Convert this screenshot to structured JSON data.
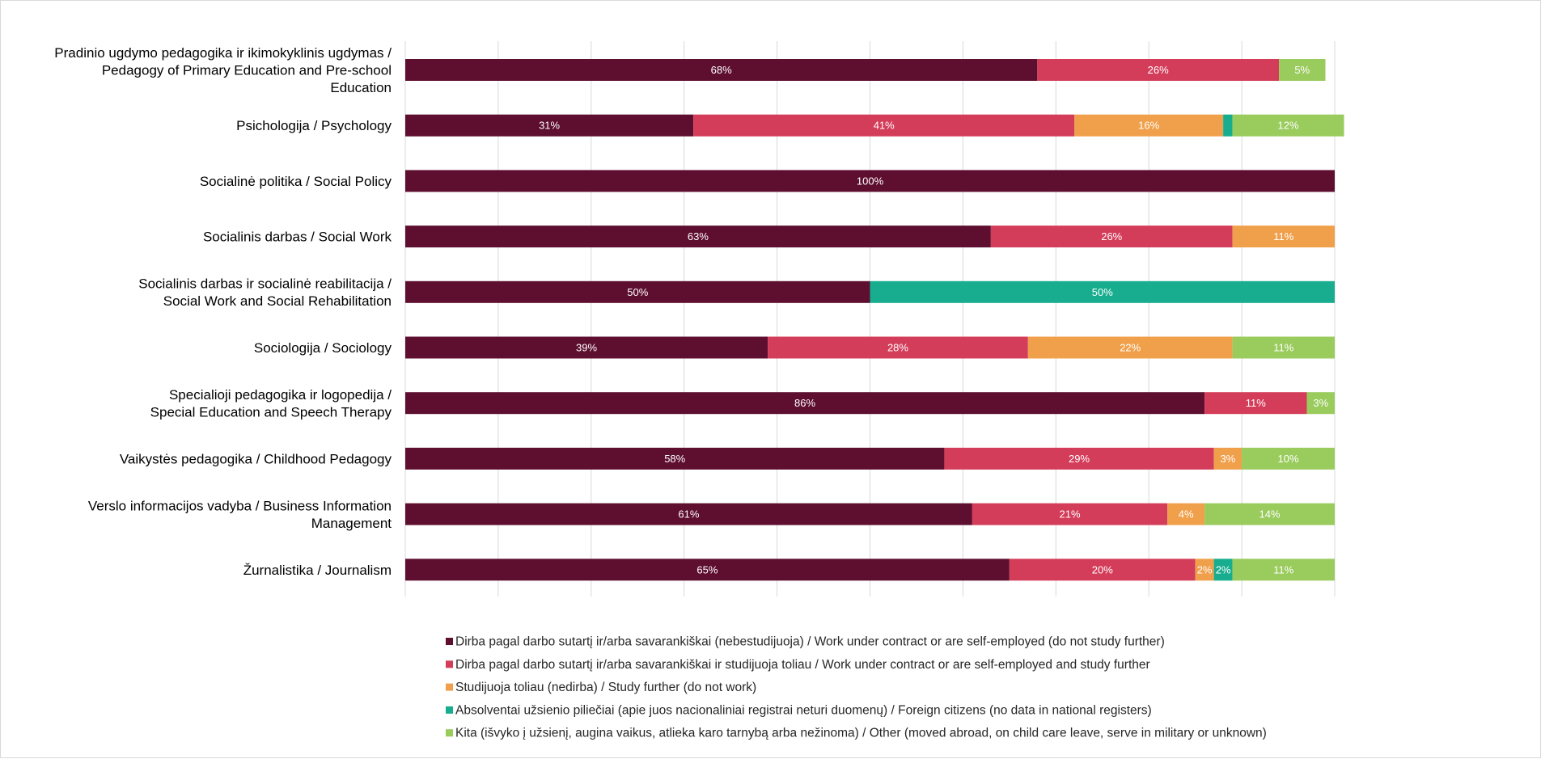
{
  "chart_data": {
    "type": "bar",
    "orientation": "horizontal",
    "stacked": true,
    "xlim": [
      0,
      100
    ],
    "grid": true,
    "legend_position": "bottom",
    "categories": [
      [
        "Pradinio ugdymo pedagogika ir ikimokyklinis ugdymas /",
        "Pedagogy of Primary Education and Pre-school",
        "Education"
      ],
      [
        "Psichologija / Psychology"
      ],
      [
        "Socialinė politika / Social Policy"
      ],
      [
        "Socialinis darbas / Social Work"
      ],
      [
        "Socialinis darbas ir socialinė reabilitacija /",
        "Social Work and Social Rehabilitation"
      ],
      [
        "Sociologija / Sociology"
      ],
      [
        "Specialioji pedagogika ir logopedija /",
        "Special Education and Speech Therapy"
      ],
      [
        "Vaikystės pedagogika / Childhood Pedagogy"
      ],
      [
        "Verslo informacijos vadyba / Business Information",
        "Management"
      ],
      [
        "Žurnalistika / Journalism"
      ]
    ],
    "series": [
      {
        "name": "Dirba pagal darbo sutartį ir/arba savarankiškai (nebestudijuoja) / Work under contract or are self-employed (do not study further)",
        "color": "#5e0e2f",
        "values": [
          68,
          31,
          100,
          63,
          50,
          39,
          86,
          58,
          61,
          65
        ]
      },
      {
        "name": "Dirba pagal darbo sutartį ir/arba savarankiškai  ir studijuoja toliau / Work under contract or are self-employed and study further",
        "color": "#d43d5a",
        "values": [
          26,
          41,
          0,
          26,
          0,
          28,
          11,
          29,
          21,
          20
        ]
      },
      {
        "name": "Studijuoja toliau (nedirba) / Study further (do not work)",
        "color": "#f0a04b",
        "values": [
          0,
          16,
          0,
          11,
          0,
          22,
          0,
          3,
          4,
          2
        ]
      },
      {
        "name": "Absolventai užsienio piliečiai (apie juos nacionaliniai registrai neturi duomenų) / Foreign citizens (no data in national registers)",
        "color": "#17ad8e",
        "values": [
          0,
          1,
          0,
          0,
          50,
          0,
          0,
          0,
          0,
          2
        ]
      },
      {
        "name": "Kita (išvyko į užsienį, augina vaikus, atlieka karo tarnybą arba nežinoma) / Other (moved abroad, on child care leave, serve in military or unknown)",
        "color": "#9acb5d",
        "values": [
          5,
          12,
          0,
          0,
          0,
          11,
          3,
          10,
          14,
          11
        ]
      }
    ],
    "data_labels": [
      [
        "68%",
        "26%",
        "",
        "",
        "5%"
      ],
      [
        "31%",
        "41%",
        "16%",
        "",
        "12%"
      ],
      [
        "100%",
        "",
        "",
        "",
        ""
      ],
      [
        "63%",
        "26%",
        "11%",
        "",
        ""
      ],
      [
        "50%",
        "",
        "",
        "50%",
        ""
      ],
      [
        "39%",
        "28%",
        "22%",
        "",
        "11%"
      ],
      [
        "86%",
        "11%",
        "",
        "",
        "3%"
      ],
      [
        "58%",
        "29%",
        "3%",
        "",
        "10%"
      ],
      [
        "61%",
        "21%",
        "4%",
        "",
        "14%"
      ],
      [
        "65%",
        "20%",
        "2%",
        "2%",
        "11%"
      ]
    ]
  }
}
